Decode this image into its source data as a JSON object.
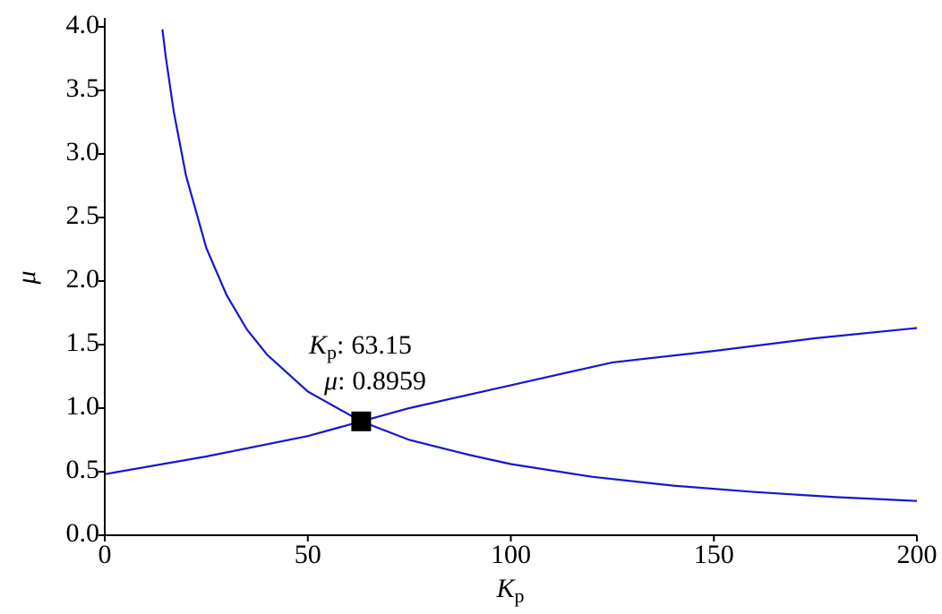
{
  "chart_data": {
    "type": "line",
    "xlabel": {
      "symbol": "K",
      "subscript": "p"
    },
    "ylabel": "μ",
    "series": [
      {
        "color": "#1515d0",
        "x": [
          14.2,
          15,
          17,
          20,
          25,
          30,
          35,
          40,
          50,
          63.15,
          75,
          90,
          100,
          120,
          140,
          160,
          180,
          200
        ],
        "values": [
          3.98,
          3.77,
          3.33,
          2.83,
          2.26,
          1.89,
          1.62,
          1.42,
          1.13,
          0.8959,
          0.75,
          0.63,
          0.56,
          0.46,
          0.39,
          0.34,
          0.3,
          0.27
        ]
      },
      {
        "color": "#1515d0",
        "x": [
          0,
          25,
          50,
          63.15,
          75,
          100,
          125,
          150,
          175,
          200
        ],
        "values": [
          0.48,
          0.62,
          0.78,
          0.8959,
          1.0,
          1.18,
          1.36,
          1.45,
          1.55,
          1.63
        ]
      }
    ],
    "annotation": {
      "x": 63.15,
      "y": 0.8959,
      "x_name": {
        "symbol": "K",
        "subscript": "p"
      },
      "y_name": "μ",
      "separator": ":",
      "marker_color": "#000000"
    },
    "xlim": [
      0,
      200
    ],
    "xticks": [
      0,
      50,
      100,
      150,
      200
    ],
    "ylim": [
      0,
      4.0
    ],
    "yticks": [
      {
        "value": 0,
        "label": "0.0"
      },
      0.5,
      {
        "value": 1.0,
        "label": "1.0"
      },
      1.5,
      {
        "value": 2.0,
        "label": "2.0"
      },
      2.5,
      {
        "value": 3.0,
        "label": "3.0"
      },
      3.5,
      {
        "value": 4.0,
        "label": "4.0"
      }
    ]
  }
}
